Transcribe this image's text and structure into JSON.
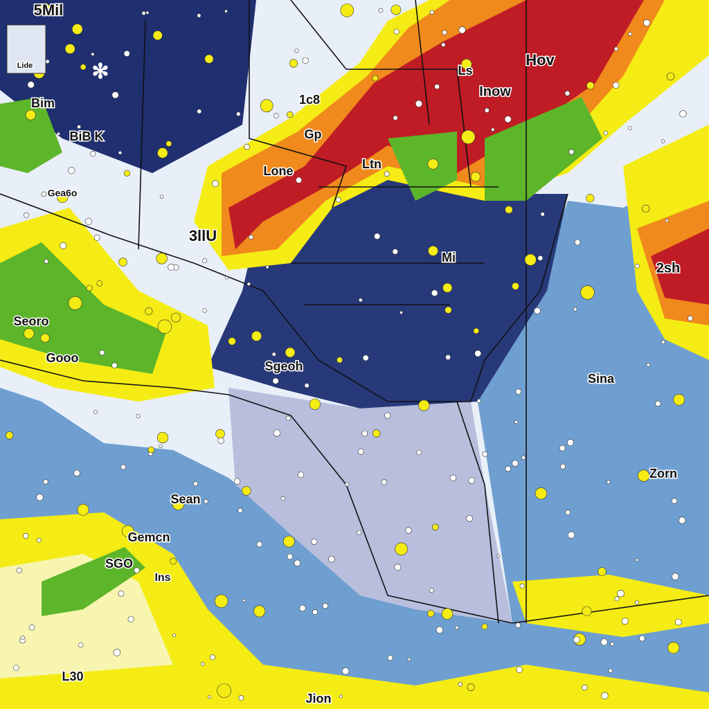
{
  "header": {
    "title": "5Mil",
    "badge": "Lide"
  },
  "labels": [
    "Bim",
    "BiB K",
    "Gea6o",
    "1c8",
    "Gp",
    "Lone",
    "Ltn",
    "3llU",
    "Ls",
    "Hov",
    "Inow",
    "Mi",
    "2sh",
    "Seoro",
    "Gooo",
    "Sgeoh",
    "Sina",
    "Zorn",
    "Sean",
    "Gemcn",
    "SGO",
    "Ins",
    "L30",
    "Jion"
  ]
}
